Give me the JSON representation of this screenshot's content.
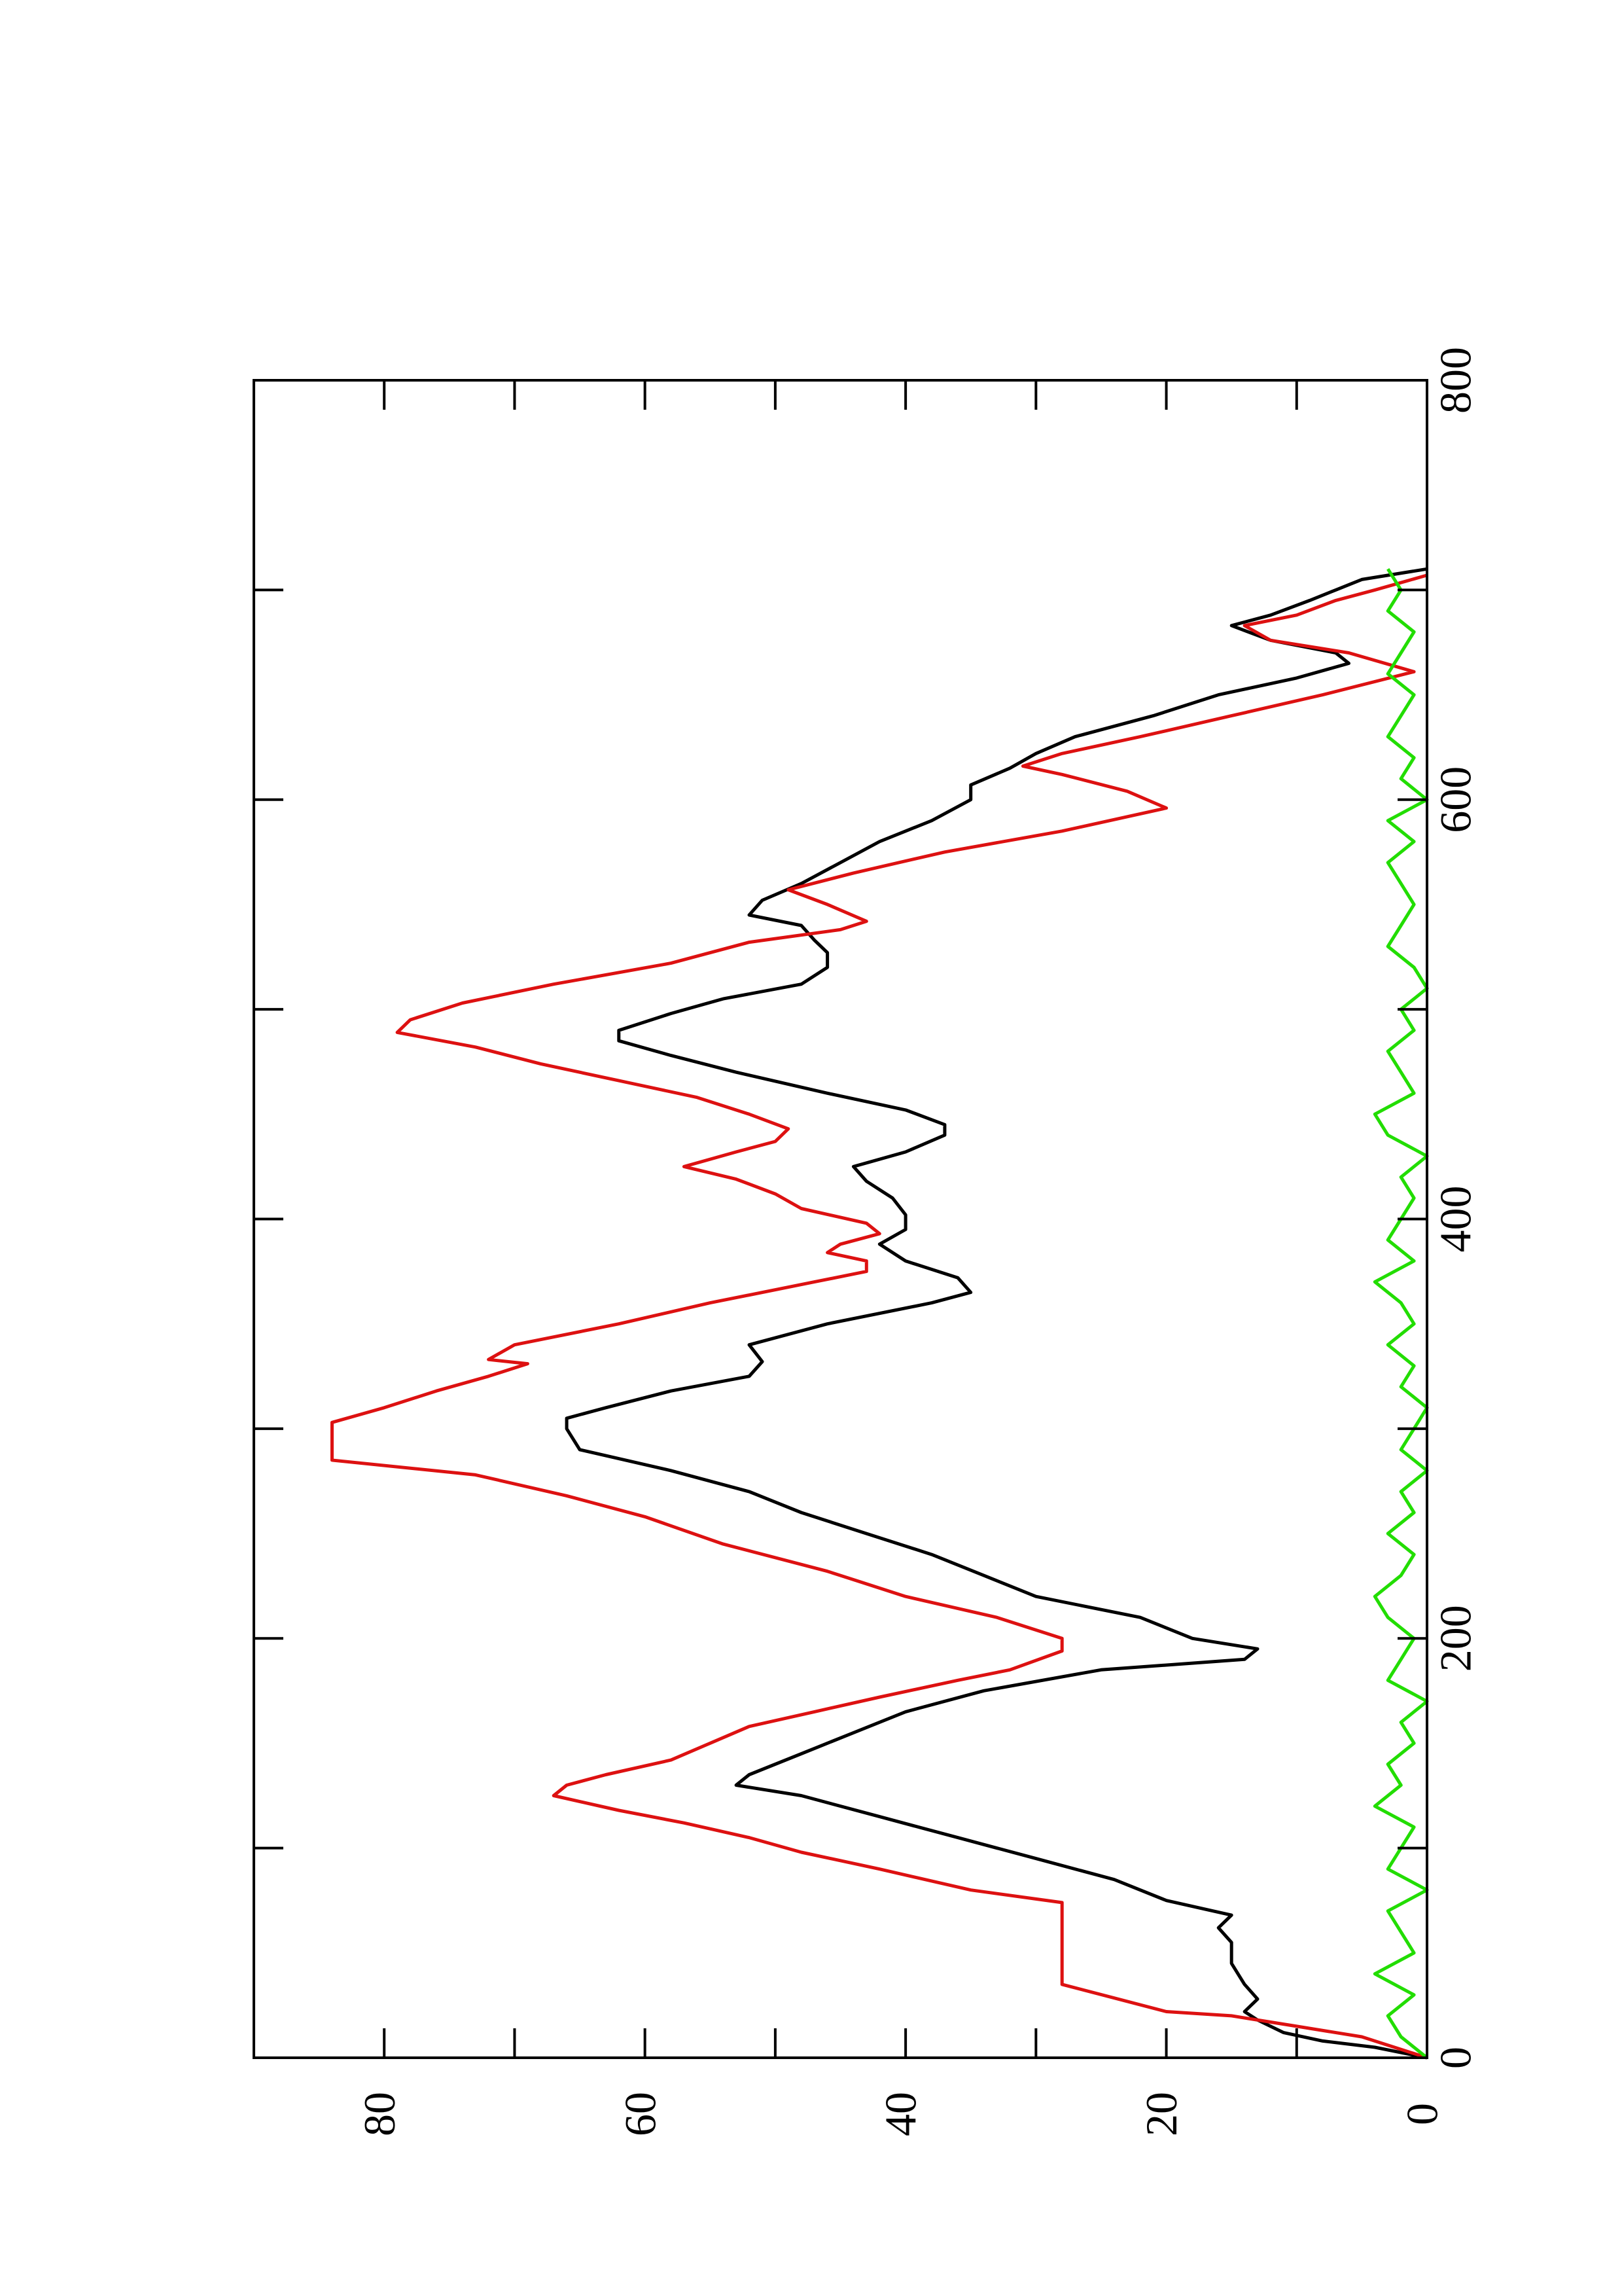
{
  "chart_data": {
    "type": "line",
    "xlim": [
      0,
      800
    ],
    "xticks": [
      0,
      200,
      400,
      600,
      800
    ],
    "xminor_ticks": [
      100,
      300,
      500,
      700
    ],
    "ylim": [
      0,
      90
    ],
    "yticks": [
      0,
      20,
      40,
      60,
      80
    ],
    "yminor_ticks": [
      10,
      30,
      50,
      70
    ],
    "rotated": true,
    "series": [
      {
        "color": "#000000",
        "x": [
          0,
          5,
          8,
          12,
          18,
          22,
          28,
          35,
          45,
          55,
          62,
          68,
          75,
          85,
          95,
          105,
          115,
          125,
          130,
          135,
          145,
          155,
          165,
          175,
          185,
          190,
          195,
          200,
          210,
          220,
          230,
          240,
          250,
          260,
          270,
          280,
          290,
          300,
          305,
          310,
          318,
          325,
          332,
          340,
          350,
          360,
          365,
          372,
          380,
          388,
          395,
          402,
          410,
          418,
          425,
          432,
          440,
          445,
          452,
          460,
          470,
          478,
          485,
          490,
          498,
          505,
          512,
          520,
          527,
          533,
          540,
          545,
          552,
          560,
          570,
          580,
          590,
          600,
          607,
          615,
          622,
          630,
          640,
          650,
          658,
          665,
          670,
          676,
          683,
          688,
          695,
          700,
          705,
          710
        ],
        "values": [
          0,
          4,
          8,
          11,
          13,
          14,
          13,
          14,
          15,
          15,
          16,
          15,
          20,
          24,
          30,
          36,
          42,
          48,
          53,
          52,
          48,
          44,
          40,
          34,
          25,
          14,
          13,
          18,
          22,
          30,
          34,
          38,
          43,
          48,
          52,
          58,
          65,
          66,
          66,
          63,
          58,
          52,
          51,
          52,
          46,
          38,
          35,
          36,
          40,
          42,
          40,
          40,
          41,
          43,
          44,
          40,
          37,
          37,
          40,
          46,
          53,
          58,
          62,
          62,
          58,
          54,
          48,
          46,
          46,
          47,
          48,
          52,
          51,
          48,
          45,
          42,
          38,
          35,
          35,
          32,
          30,
          27,
          21,
          16,
          10,
          6,
          7,
          12,
          15,
          12,
          9,
          7,
          5,
          0
        ]
      },
      {
        "color": "#dd1111",
        "x": [
          0,
          10,
          15,
          20,
          22,
          35,
          74,
          80,
          90,
          98,
          105,
          112,
          118,
          125,
          130,
          135,
          142,
          150,
          158,
          165,
          172,
          180,
          185,
          194,
          200,
          210,
          220,
          232,
          245,
          258,
          268,
          278,
          285,
          303,
          310,
          318,
          325,
          331,
          333,
          340,
          350,
          360,
          370,
          375,
          380,
          384,
          388,
          393,
          398,
          405,
          412,
          419,
          425,
          432,
          437,
          443,
          450,
          458,
          466,
          474,
          482,
          489,
          495,
          503,
          512,
          522,
          532,
          538,
          542,
          550,
          557,
          565,
          575,
          585,
          596,
          604,
          612,
          616,
          622,
          630,
          640,
          650,
          661,
          670,
          676,
          683,
          688,
          695,
          700,
          707
        ],
        "values": [
          0,
          5,
          10,
          15,
          20,
          28,
          28,
          35,
          42,
          48,
          52,
          57,
          62,
          67,
          66,
          63,
          58,
          55,
          52,
          47,
          42,
          36,
          32,
          28,
          28,
          33,
          40,
          46,
          54,
          60,
          66,
          73,
          84,
          84,
          80,
          76,
          72,
          69,
          72,
          70,
          62,
          55,
          47,
          43,
          43,
          46,
          45,
          42,
          43,
          48,
          50,
          53,
          57,
          53,
          50,
          49,
          52,
          56,
          62,
          68,
          73,
          79,
          78,
          74,
          67,
          58,
          52,
          45,
          43,
          46,
          49,
          44,
          37,
          28,
          20,
          23,
          28,
          31,
          28,
          22,
          15,
          8,
          1,
          6,
          12,
          14,
          10,
          7,
          4,
          0
        ]
      },
      {
        "color": "#22dd00",
        "x": [
          0,
          10,
          20,
          30,
          40,
          50,
          60,
          70,
          80,
          90,
          100,
          110,
          120,
          130,
          140,
          150,
          160,
          170,
          180,
          190,
          200,
          210,
          220,
          230,
          240,
          250,
          260,
          270,
          280,
          290,
          300,
          310,
          320,
          330,
          340,
          350,
          360,
          370,
          380,
          390,
          400,
          410,
          420,
          430,
          440,
          450,
          460,
          470,
          480,
          490,
          500,
          510,
          520,
          530,
          540,
          550,
          560,
          570,
          580,
          590,
          600,
          610,
          620,
          630,
          640,
          650,
          660,
          670,
          680,
          690,
          700,
          710
        ],
        "values": [
          0,
          2,
          3,
          1,
          4,
          1,
          2,
          3,
          0,
          3,
          2,
          1,
          4,
          2,
          3,
          1,
          2,
          0,
          3,
          2,
          1,
          3,
          4,
          2,
          1,
          3,
          1,
          2,
          0,
          2,
          1,
          0,
          2,
          1,
          3,
          1,
          2,
          4,
          1,
          3,
          2,
          1,
          2,
          0,
          3,
          4,
          1,
          2,
          3,
          1,
          2,
          0,
          1,
          3,
          2,
          1,
          2,
          3,
          1,
          3,
          0,
          2,
          1,
          3,
          2,
          1,
          3,
          2,
          1,
          3,
          2,
          3
        ]
      }
    ]
  }
}
